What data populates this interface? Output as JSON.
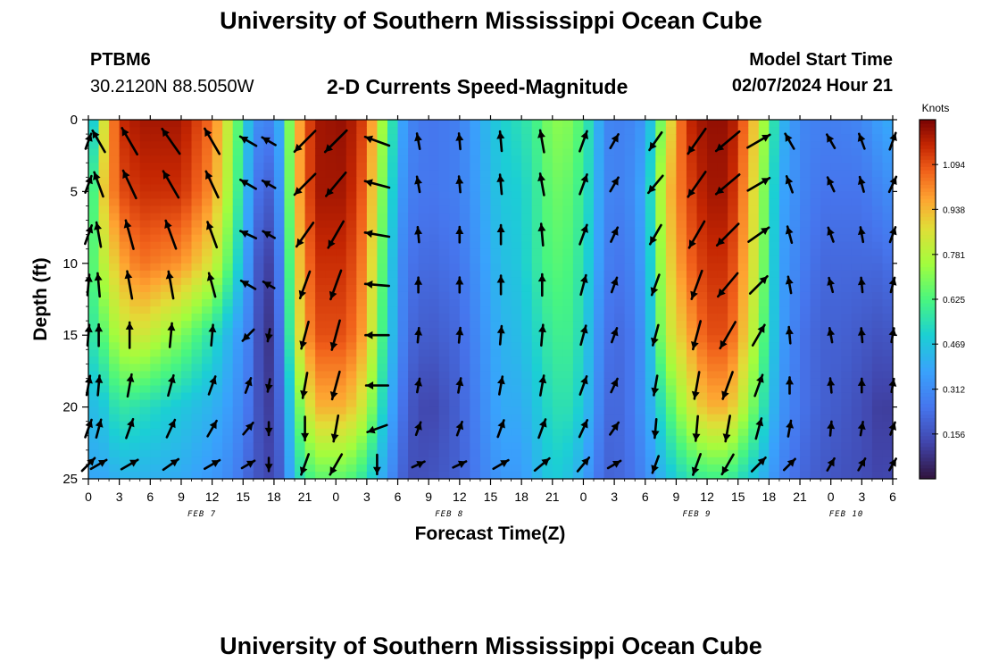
{
  "header": {
    "title": "University of Southern Mississippi Ocean Cube",
    "station_id": "PTBM6",
    "station_coords": "30.2120N  88.5050W",
    "plot_title": "2-D Currents Speed-Magnitude",
    "model_start_label": "Model Start Time",
    "model_start_value": "02/07/2024 Hour 21"
  },
  "footer": {
    "title": "University of Southern Mississippi Ocean Cube"
  },
  "chart_data": {
    "type": "heatmap",
    "title": "2-D Currents Speed-Magnitude",
    "xlabel": "Forecast Time(Z)",
    "ylabel": "Depth (ft)",
    "x_unit": "hours since 2024-02-07 00Z",
    "xlim": [
      0,
      78
    ],
    "ylim": [
      25,
      0
    ],
    "x_tick_values": [
      0,
      3,
      6,
      9,
      12,
      15,
      18,
      21,
      24,
      27,
      30,
      33,
      36,
      39,
      42,
      45,
      48,
      51,
      54,
      57,
      60,
      63,
      66,
      69,
      72,
      75,
      78
    ],
    "x_tick_labels": [
      "0",
      "3",
      "6",
      "9",
      "12",
      "15",
      "18",
      "21",
      "0",
      "3",
      "6",
      "9",
      "12",
      "15",
      "18",
      "21",
      "0",
      "3",
      "6",
      "9",
      "12",
      "15",
      "18",
      "21",
      "0",
      "3",
      "6"
    ],
    "day_labels": [
      {
        "label": "FEB 7",
        "hour": 11
      },
      {
        "label": "FEB 8",
        "hour": 35
      },
      {
        "label": "FEB 9",
        "hour": 59
      },
      {
        "label": "FEB 10",
        "hour": 73.5
      }
    ],
    "y_tick_values": [
      0,
      5,
      10,
      15,
      20,
      25
    ],
    "y_tick_labels": [
      "0",
      "5",
      "10",
      "15",
      "20",
      "25"
    ],
    "colorbar": {
      "label": "Knots",
      "min": 0.0,
      "max": 1.25,
      "ticks": [
        1.094,
        0.938,
        0.781,
        0.625,
        0.469,
        0.312,
        0.156
      ],
      "tick_labels": [
        "1.094",
        "0.938",
        "0.781",
        "0.625",
        "0.469",
        "0.312",
        "0.156"
      ]
    },
    "speed_field": {
      "description": "approximate current speed (knots) by forecast hour; columns are depths 0, 5, 10, 15, 20, 25 ft",
      "depths": [
        0,
        5,
        10,
        15,
        20,
        25
      ],
      "hours": [
        0,
        1,
        3,
        5,
        9,
        12,
        14,
        16,
        17,
        18,
        19,
        20,
        22,
        25,
        27,
        28,
        30,
        31,
        33,
        36,
        38,
        40,
        42,
        43,
        45,
        47,
        49,
        50,
        52,
        54,
        56,
        58,
        60,
        62,
        63,
        65,
        67,
        69,
        71,
        73,
        75,
        77,
        78
      ],
      "values": [
        [
          0.25,
          0.4,
          0.55,
          0.55,
          0.45,
          0.4
        ],
        [
          0.75,
          0.85,
          0.75,
          0.6,
          0.45,
          0.38
        ],
        [
          1.15,
          1.1,
          0.95,
          0.8,
          0.58,
          0.42
        ],
        [
          1.2,
          1.15,
          1.05,
          0.85,
          0.55,
          0.42
        ],
        [
          1.2,
          1.15,
          1.0,
          0.7,
          0.48,
          0.4
        ],
        [
          1.05,
          1.0,
          0.85,
          0.55,
          0.42,
          0.35
        ],
        [
          0.75,
          0.7,
          0.6,
          0.4,
          0.35,
          0.3
        ],
        [
          0.35,
          0.3,
          0.25,
          0.25,
          0.22,
          0.18
        ],
        [
          0.28,
          0.18,
          0.1,
          0.06,
          0.1,
          0.15
        ],
        [
          0.3,
          0.22,
          0.14,
          0.12,
          0.12,
          0.12
        ],
        [
          0.5,
          0.45,
          0.4,
          0.35,
          0.3,
          0.25
        ],
        [
          0.9,
          0.9,
          0.85,
          0.8,
          0.6,
          0.5
        ],
        [
          1.2,
          1.2,
          1.15,
          1.1,
          0.95,
          0.65
        ],
        [
          1.22,
          1.2,
          1.15,
          1.1,
          0.95,
          0.65
        ],
        [
          1.1,
          1.05,
          1.0,
          0.95,
          0.8,
          0.55
        ],
        [
          0.85,
          0.8,
          0.75,
          0.7,
          0.6,
          0.45
        ],
        [
          0.45,
          0.4,
          0.35,
          0.35,
          0.3,
          0.25
        ],
        [
          0.3,
          0.28,
          0.25,
          0.22,
          0.18,
          0.15
        ],
        [
          0.25,
          0.25,
          0.22,
          0.18,
          0.12,
          0.16
        ],
        [
          0.28,
          0.28,
          0.25,
          0.22,
          0.2,
          0.2
        ],
        [
          0.4,
          0.38,
          0.35,
          0.32,
          0.3,
          0.28
        ],
        [
          0.5,
          0.48,
          0.45,
          0.42,
          0.4,
          0.35
        ],
        [
          0.55,
          0.5,
          0.48,
          0.45,
          0.4,
          0.35
        ],
        [
          0.58,
          0.55,
          0.55,
          0.5,
          0.45,
          0.4
        ],
        [
          0.72,
          0.68,
          0.65,
          0.6,
          0.55,
          0.5
        ],
        [
          0.7,
          0.65,
          0.62,
          0.6,
          0.55,
          0.45
        ],
        [
          0.5,
          0.48,
          0.45,
          0.4,
          0.38,
          0.3
        ],
        [
          0.3,
          0.3,
          0.28,
          0.25,
          0.22,
          0.2
        ],
        [
          0.28,
          0.28,
          0.25,
          0.22,
          0.22,
          0.22
        ],
        [
          0.35,
          0.4,
          0.38,
          0.35,
          0.35,
          0.3
        ],
        [
          0.8,
          0.9,
          0.85,
          0.8,
          0.6,
          0.45
        ],
        [
          1.15,
          1.1,
          1.05,
          0.95,
          0.8,
          0.55
        ],
        [
          1.22,
          1.2,
          1.15,
          1.1,
          0.95,
          0.6
        ],
        [
          1.22,
          1.2,
          1.15,
          1.1,
          0.95,
          0.6
        ],
        [
          1.15,
          1.1,
          1.05,
          1.0,
          0.85,
          0.55
        ],
        [
          0.85,
          0.8,
          0.78,
          0.72,
          0.62,
          0.45
        ],
        [
          0.45,
          0.4,
          0.38,
          0.38,
          0.35,
          0.3
        ],
        [
          0.3,
          0.3,
          0.28,
          0.25,
          0.25,
          0.22
        ],
        [
          0.28,
          0.25,
          0.22,
          0.2,
          0.2,
          0.18
        ],
        [
          0.28,
          0.25,
          0.22,
          0.2,
          0.18,
          0.16
        ],
        [
          0.3,
          0.25,
          0.22,
          0.18,
          0.15,
          0.15
        ],
        [
          0.38,
          0.3,
          0.22,
          0.16,
          0.1,
          0.12
        ],
        [
          0.4,
          0.32,
          0.25,
          0.18,
          0.12,
          0.14
        ]
      ]
    },
    "vectors": {
      "description": "current direction in degrees clockwise from north (direction toward), sampled at arrow columns/rows; length scaled by speed_field",
      "hours": [
        0,
        1,
        4,
        8,
        12,
        15.5,
        17.5,
        21,
        24,
        28,
        32,
        36,
        40,
        44,
        48,
        51,
        55,
        59,
        62,
        65,
        68,
        72,
        75,
        78
      ],
      "depths": [
        1.5,
        4.5,
        8,
        11.5,
        15,
        18.5,
        21.5,
        24
      ],
      "directions": [
        [
          20,
          20,
          20,
          5,
          5,
          10,
          20,
          45
        ],
        [
          330,
          340,
          350,
          355,
          0,
          5,
          15,
          60
        ],
        [
          330,
          335,
          345,
          350,
          0,
          10,
          20,
          60
        ],
        [
          325,
          330,
          340,
          350,
          5,
          15,
          25,
          55
        ],
        [
          330,
          335,
          340,
          345,
          5,
          20,
          30,
          60
        ],
        [
          300,
          300,
          295,
          300,
          225,
          20,
          40,
          60
        ],
        [
          300,
          300,
          300,
          300,
          190,
          190,
          180,
          180
        ],
        [
          225,
          225,
          215,
          200,
          195,
          190,
          180,
          200
        ],
        [
          225,
          220,
          210,
          200,
          195,
          195,
          190,
          210
        ],
        [
          290,
          285,
          280,
          275,
          270,
          270,
          250,
          180
        ],
        [
          350,
          350,
          355,
          0,
          5,
          10,
          20,
          65
        ],
        [
          355,
          355,
          0,
          0,
          5,
          10,
          20,
          65
        ],
        [
          355,
          355,
          0,
          0,
          5,
          10,
          20,
          60
        ],
        [
          350,
          350,
          355,
          0,
          5,
          10,
          20,
          50
        ],
        [
          20,
          20,
          20,
          15,
          15,
          20,
          25,
          40
        ],
        [
          30,
          30,
          25,
          20,
          20,
          25,
          35,
          60
        ],
        [
          215,
          220,
          210,
          200,
          195,
          190,
          185,
          200
        ],
        [
          215,
          215,
          210,
          200,
          195,
          190,
          185,
          200
        ],
        [
          230,
          230,
          225,
          220,
          210,
          200,
          190,
          210
        ],
        [
          60,
          60,
          55,
          45,
          30,
          20,
          15,
          45
        ],
        [
          330,
          340,
          345,
          350,
          355,
          0,
          10,
          45
        ],
        [
          330,
          335,
          340,
          345,
          350,
          355,
          5,
          30
        ],
        [
          340,
          345,
          350,
          355,
          355,
          0,
          10,
          30
        ],
        [
          20,
          25,
          20,
          15,
          10,
          10,
          20,
          30
        ]
      ]
    }
  }
}
